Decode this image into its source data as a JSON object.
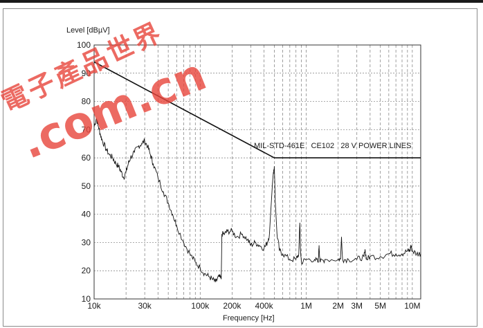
{
  "chart_data": {
    "type": "line",
    "title": "",
    "ylabel": "Level [dBµV]",
    "xlabel": "Frequency [Hz]",
    "x_scale": "log",
    "xlim": [
      10000,
      12000000
    ],
    "ylim": [
      10,
      100
    ],
    "grid": true,
    "x_ticks": [
      {
        "v": 10000,
        "label": "10k"
      },
      {
        "v": 30000,
        "label": "30k"
      },
      {
        "v": 100000,
        "label": "100k"
      },
      {
        "v": 200000,
        "label": "200k"
      },
      {
        "v": 400000,
        "label": "400k"
      },
      {
        "v": 1000000,
        "label": "1M"
      },
      {
        "v": 2000000,
        "label": "2M"
      },
      {
        "v": 3000000,
        "label": "3M"
      },
      {
        "v": 5000000,
        "label": "5M"
      },
      {
        "v": 10000000,
        "label": "10M"
      }
    ],
    "y_ticks": [
      10,
      20,
      30,
      40,
      50,
      60,
      70,
      80,
      90,
      100
    ],
    "limit_line": {
      "label": "MIL-STD-461E   CE102   28 V POWER LINES",
      "x": [
        10000,
        500000,
        12000000
      ],
      "y": [
        94,
        60,
        60
      ]
    },
    "series": [
      {
        "x": [
          10000,
          10500,
          11000,
          11500,
          12000,
          13000,
          14000,
          15000,
          16000,
          17000,
          18000,
          19000,
          20000,
          21000,
          22000,
          24000,
          26000,
          28000,
          30000,
          32000,
          34000,
          36000,
          40000,
          45000,
          50000,
          55000,
          60000,
          70000,
          80000,
          90000,
          100000,
          110000,
          120000,
          130000,
          140000,
          150000,
          158000,
          160000,
          170000,
          180000,
          200000,
          220000,
          250000,
          280000,
          300000,
          330000,
          360000,
          400000,
          430000,
          450000,
          470000,
          490000,
          500000,
          510000,
          530000,
          560000,
          600000,
          700000,
          800000,
          850000,
          870000,
          880000,
          900000,
          1000000,
          1200000,
          1300000,
          1320000,
          1350000,
          1500000,
          2000000,
          2100000,
          2150000,
          2200000,
          2500000,
          3000000,
          3500000,
          3600000,
          3700000,
          4000000,
          5000000,
          6000000,
          7000000,
          8000000,
          9000000,
          9500000,
          9700000,
          10000000,
          11000000,
          12000000
        ],
        "y": [
          71,
          74,
          71,
          68,
          66,
          63,
          61,
          60,
          58,
          57,
          55,
          53,
          55,
          58,
          60,
          62,
          64,
          65,
          66,
          64,
          61,
          58,
          53,
          48,
          44,
          40,
          36,
          30,
          26,
          23,
          21,
          19,
          18,
          17,
          16,
          18,
          17,
          33,
          33,
          34,
          34,
          32,
          33,
          31,
          29,
          30,
          29,
          28,
          30,
          33,
          45,
          55,
          57,
          45,
          33,
          27,
          26,
          24,
          24,
          26,
          37,
          28,
          23,
          24,
          24,
          23,
          29,
          23,
          24,
          24,
          24,
          32,
          24,
          24,
          24,
          25,
          27,
          24,
          25,
          25,
          26,
          26,
          26,
          27,
          27,
          29,
          27,
          26,
          26
        ]
      }
    ]
  },
  "watermark": {
    "chinese": "電子產品世界",
    "domain": ".com.cn",
    "color": "#e8453c"
  }
}
